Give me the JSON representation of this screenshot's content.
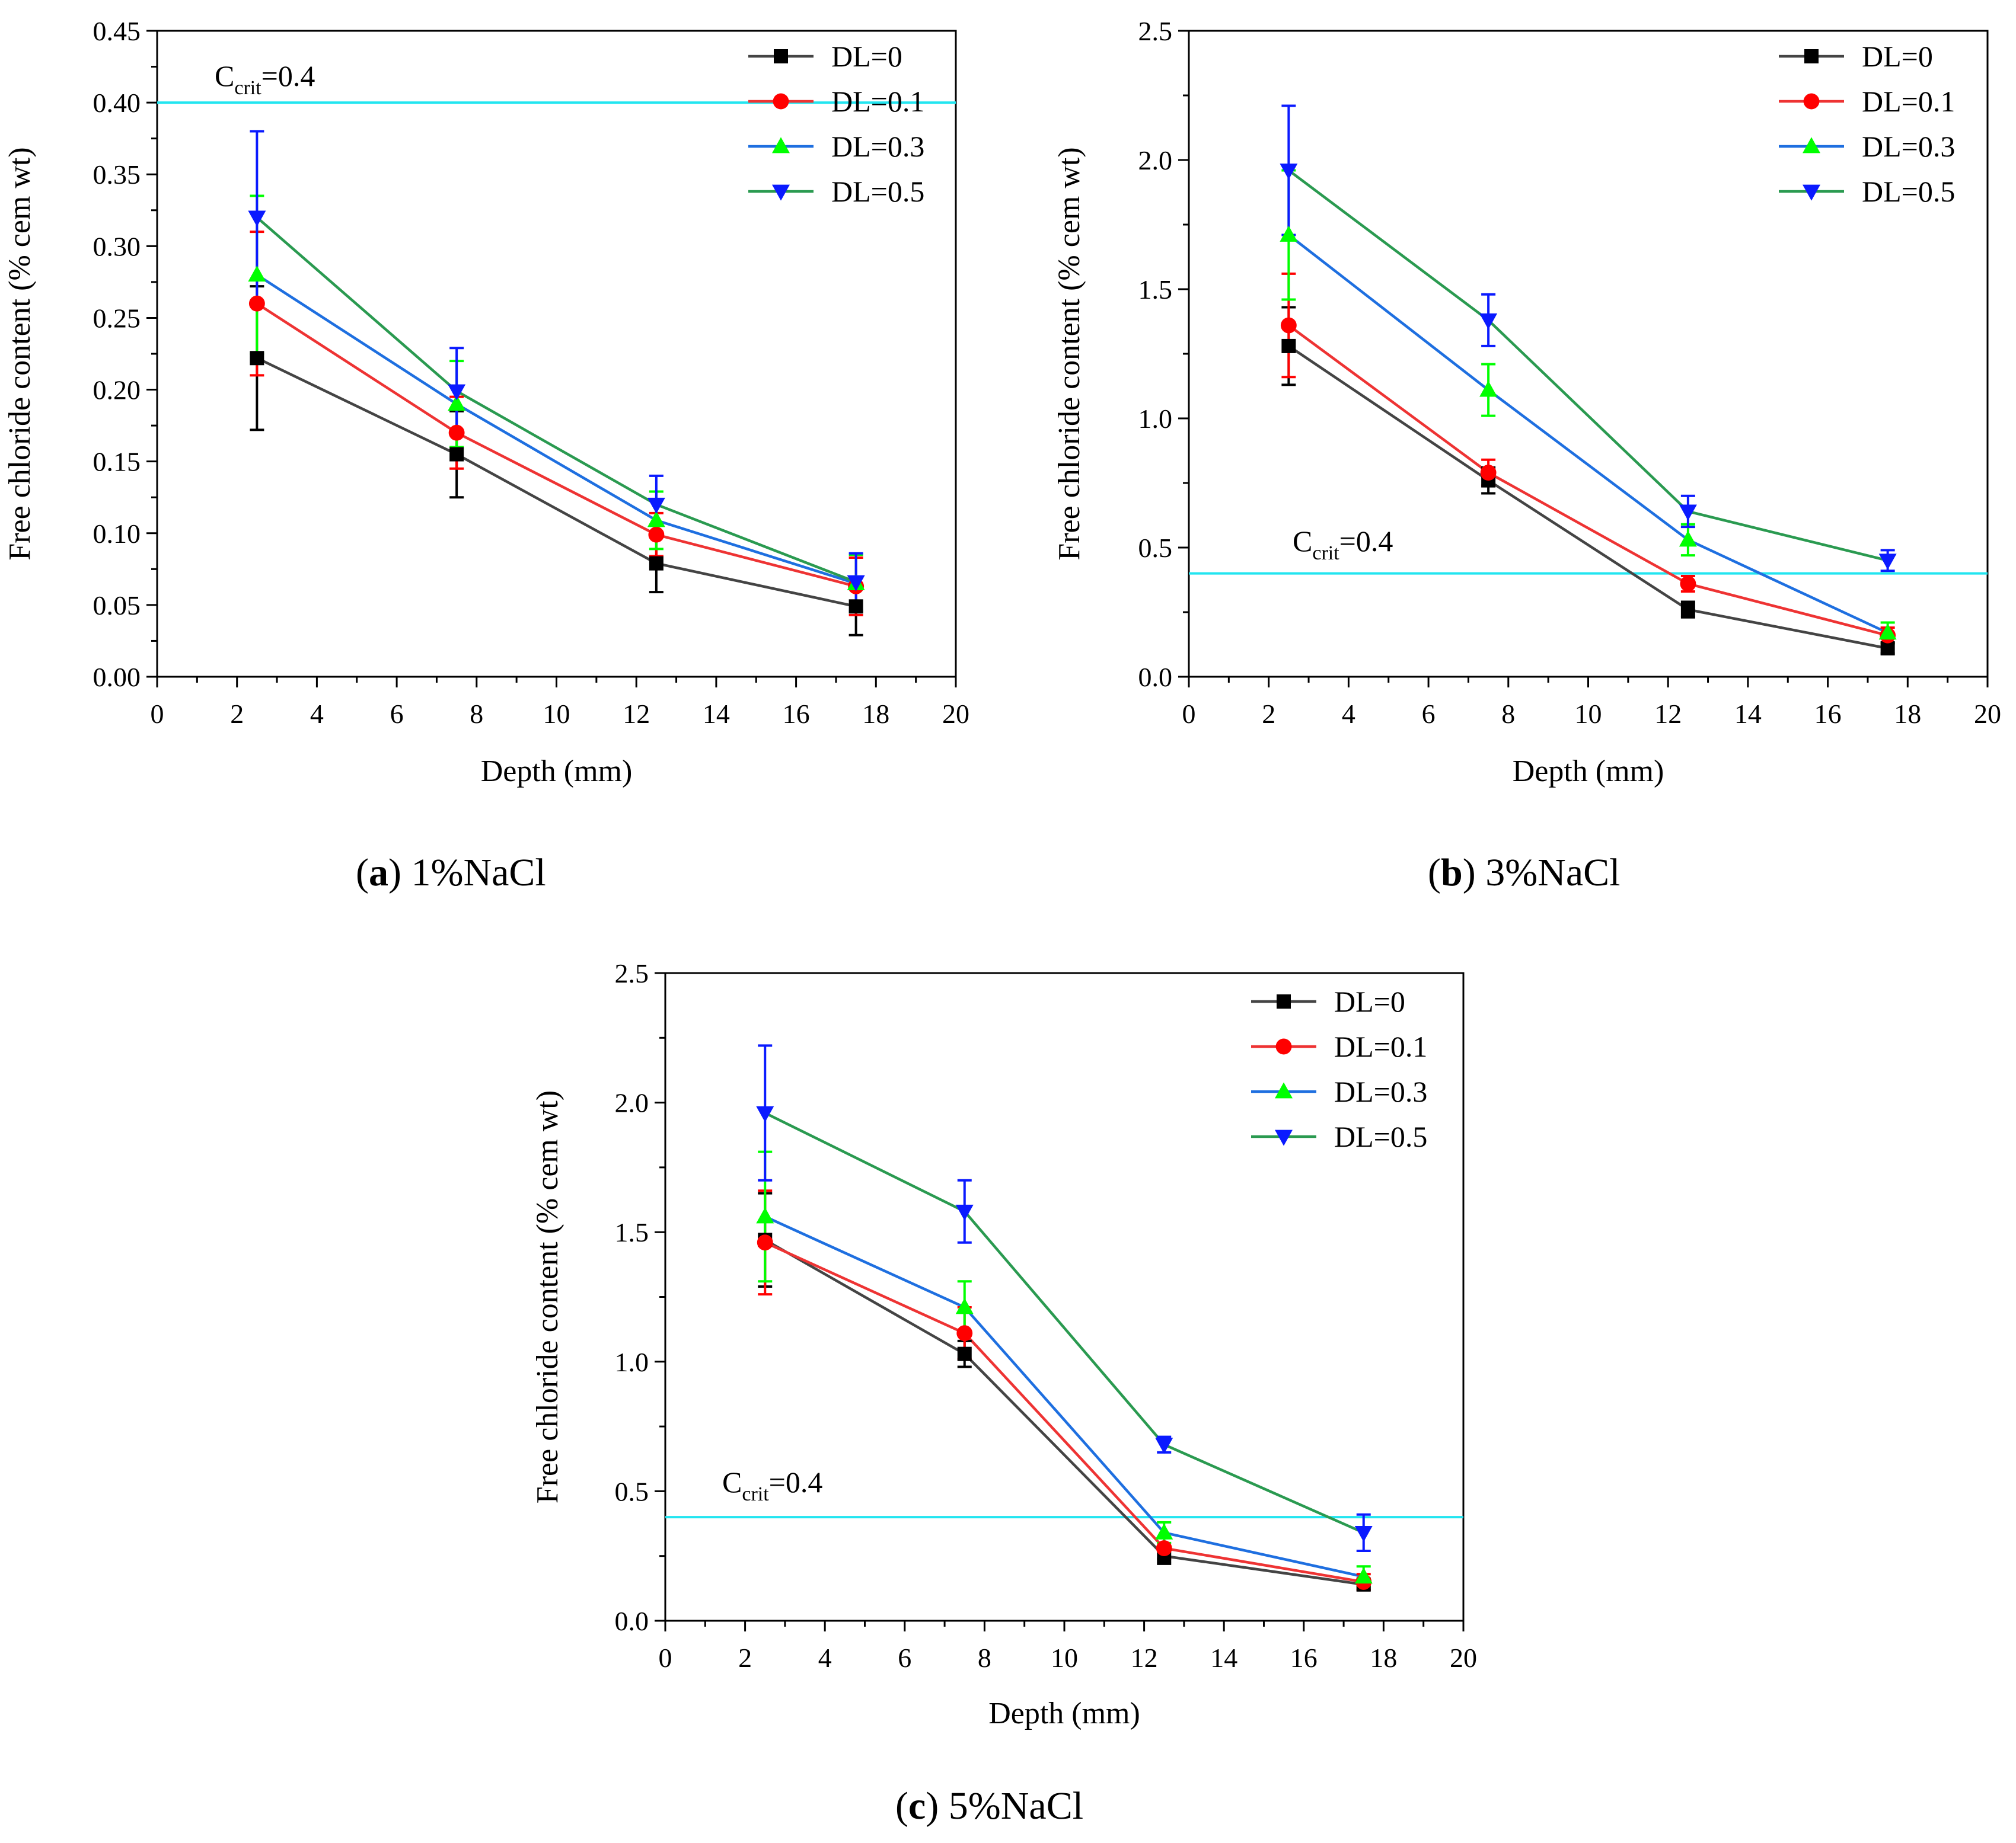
{
  "chart_data": [
    {
      "type": "line",
      "caption_label": "a",
      "caption_text": "1%NaCl",
      "xlabel": "Depth (mm)",
      "ylabel": "Free chloride content (% cem wt)",
      "xlim": [
        0,
        20
      ],
      "ylim": [
        0,
        0.45
      ],
      "xticks": [
        0,
        2,
        4,
        6,
        8,
        10,
        12,
        14,
        16,
        18,
        20
      ],
      "yticks": [
        "0.00",
        "0.05",
        "0.10",
        "0.15",
        "0.20",
        "0.25",
        "0.30",
        "0.35",
        "0.40",
        "0.45"
      ],
      "x": [
        2.5,
        7.5,
        12.5,
        17.5
      ],
      "threshold": {
        "value": 0.4,
        "label_main": "C",
        "label_sub": "crit",
        "label_rest": "=0.4",
        "color": "#22e5f0"
      },
      "legend_position": "top-right",
      "series": [
        {
          "name": "DL=0",
          "marker": "square",
          "line_color": "#444444",
          "marker_color": "#000000",
          "values": [
            0.222,
            0.155,
            0.079,
            0.049
          ],
          "errors": [
            0.05,
            0.03,
            0.02,
            0.02
          ]
        },
        {
          "name": "DL=0.1",
          "marker": "circle",
          "line_color": "#ee3333",
          "marker_color": "#ff0000",
          "values": [
            0.26,
            0.17,
            0.099,
            0.063
          ],
          "errors": [
            0.05,
            0.025,
            0.015,
            0.02
          ]
        },
        {
          "name": "DL=0.3",
          "marker": "triangle-up",
          "line_color": "#1e6fe0",
          "marker_color": "#00ff00",
          "values": [
            0.28,
            0.19,
            0.109,
            0.065
          ],
          "errors": [
            0.055,
            0.03,
            0.02,
            0.02
          ]
        },
        {
          "name": "DL=0.5",
          "marker": "triangle-down",
          "line_color": "#2a9a50",
          "marker_color": "#0a1aff",
          "values": [
            0.32,
            0.199,
            0.12,
            0.066
          ],
          "errors": [
            0.06,
            0.03,
            0.02,
            0.02
          ]
        }
      ]
    },
    {
      "type": "line",
      "caption_label": "b",
      "caption_text": "3%NaCl",
      "xlabel": "Depth (mm)",
      "ylabel": "Free chloride content (% cem wt)",
      "xlim": [
        0,
        20
      ],
      "ylim": [
        0,
        2.5
      ],
      "xticks": [
        0,
        2,
        4,
        6,
        8,
        10,
        12,
        14,
        16,
        18,
        20
      ],
      "yticks": [
        "0.0",
        "0.5",
        "1.0",
        "1.5",
        "2.0",
        "2.5"
      ],
      "x": [
        2.5,
        7.5,
        12.5,
        17.5
      ],
      "threshold": {
        "value": 0.4,
        "label_main": "C",
        "label_sub": "crit",
        "label_rest": "=0.4",
        "color": "#22e5f0"
      },
      "legend_position": "top-right",
      "series": [
        {
          "name": "DL=0",
          "marker": "square",
          "line_color": "#444444",
          "marker_color": "#000000",
          "values": [
            1.28,
            0.76,
            0.26,
            0.11
          ],
          "errors": [
            0.15,
            0.05,
            0.03,
            0.02
          ]
        },
        {
          "name": "DL=0.1",
          "marker": "circle",
          "line_color": "#ee3333",
          "marker_color": "#ff0000",
          "values": [
            1.36,
            0.79,
            0.36,
            0.16
          ],
          "errors": [
            0.2,
            0.05,
            0.03,
            0.03
          ]
        },
        {
          "name": "DL=0.3",
          "marker": "triangle-up",
          "line_color": "#1e6fe0",
          "marker_color": "#00ff00",
          "values": [
            1.71,
            1.11,
            0.53,
            0.17
          ],
          "errors": [
            0.25,
            0.1,
            0.06,
            0.04
          ]
        },
        {
          "name": "DL=0.5",
          "marker": "triangle-down",
          "line_color": "#2a9a50",
          "marker_color": "#0a1aff",
          "values": [
            1.96,
            1.38,
            0.64,
            0.45
          ],
          "errors": [
            0.25,
            0.1,
            0.06,
            0.04
          ]
        }
      ]
    },
    {
      "type": "line",
      "caption_label": "c",
      "caption_text": "5%NaCl",
      "xlabel": "Depth (mm)",
      "ylabel": "Free chloride content (% cem wt)",
      "xlim": [
        0,
        20
      ],
      "ylim": [
        0,
        2.5
      ],
      "xticks": [
        0,
        2,
        4,
        6,
        8,
        10,
        12,
        14,
        16,
        18,
        20
      ],
      "yticks": [
        "0.0",
        "0.5",
        "1.0",
        "1.5",
        "2.0",
        "2.5"
      ],
      "x": [
        2.5,
        7.5,
        12.5,
        17.5
      ],
      "threshold": {
        "value": 0.4,
        "label_main": "C",
        "label_sub": "crit",
        "label_rest": "=0.4",
        "color": "#22e5f0"
      },
      "legend_position": "top-right",
      "series": [
        {
          "name": "DL=0",
          "marker": "square",
          "line_color": "#444444",
          "marker_color": "#000000",
          "values": [
            1.47,
            1.03,
            0.25,
            0.14
          ],
          "errors": [
            0.18,
            0.05,
            0.03,
            0.02
          ]
        },
        {
          "name": "DL=0.1",
          "marker": "circle",
          "line_color": "#ee3333",
          "marker_color": "#ff0000",
          "values": [
            1.46,
            1.11,
            0.28,
            0.15
          ],
          "errors": [
            0.2,
            0.1,
            0.04,
            0.03
          ]
        },
        {
          "name": "DL=0.3",
          "marker": "triangle-up",
          "line_color": "#1e6fe0",
          "marker_color": "#00ff00",
          "values": [
            1.56,
            1.21,
            0.34,
            0.17
          ],
          "errors": [
            0.25,
            0.1,
            0.04,
            0.04
          ]
        },
        {
          "name": "DL=0.5",
          "marker": "triangle-down",
          "line_color": "#2a9a50",
          "marker_color": "#0a1aff",
          "values": [
            1.96,
            1.58,
            0.68,
            0.34
          ],
          "errors": [
            0.26,
            0.12,
            0.03,
            0.07
          ]
        }
      ]
    }
  ]
}
